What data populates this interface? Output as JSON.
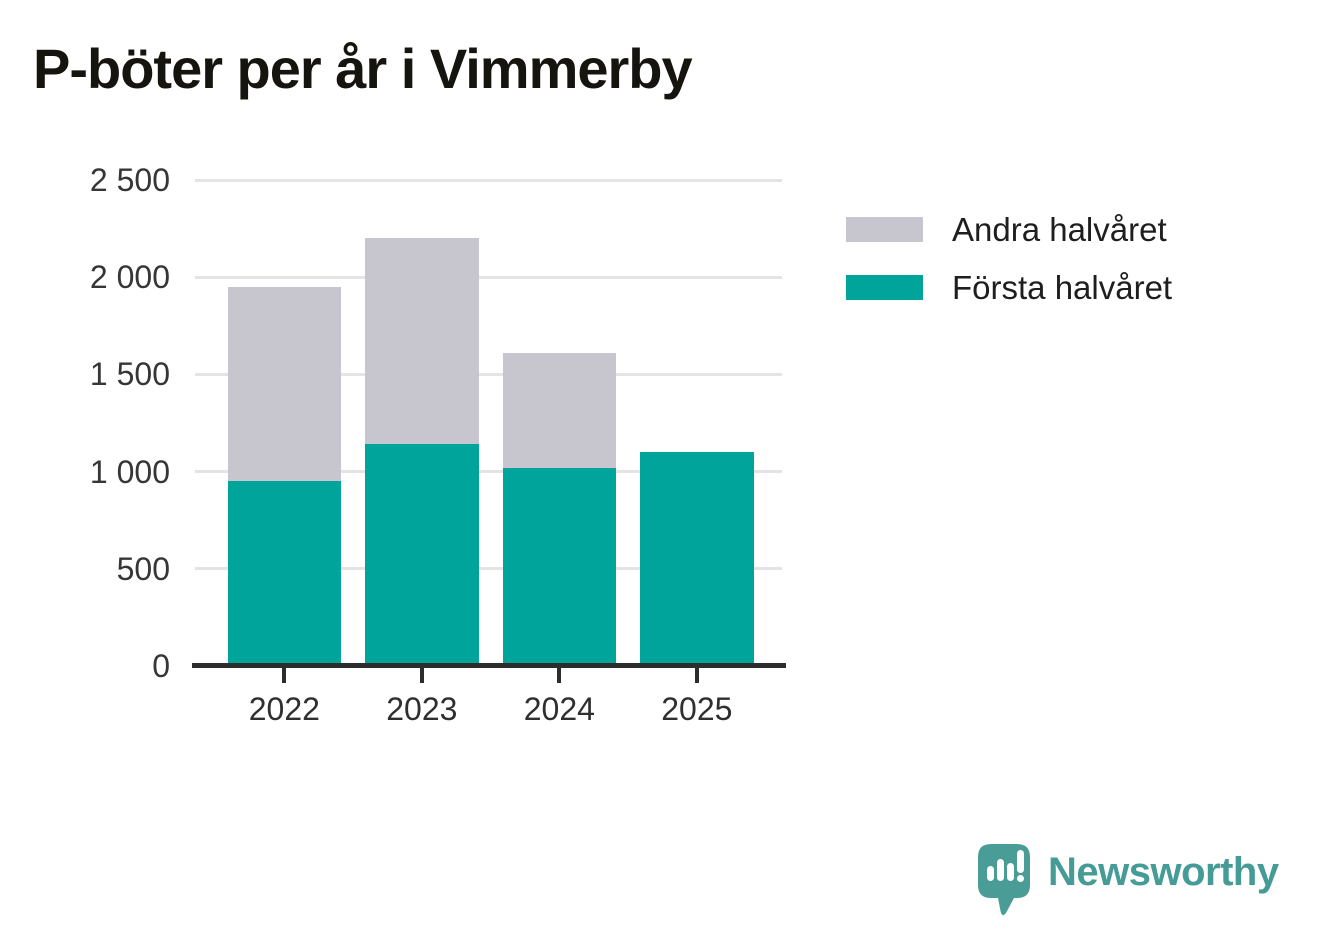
{
  "title": "P-böter per år i Vimmerby",
  "chart_data": {
    "type": "bar",
    "stacked": true,
    "title": "P-böter per år i Vimmerby",
    "categories": [
      "2022",
      "2023",
      "2024",
      "2025"
    ],
    "series": [
      {
        "name": "Första halvåret",
        "color": "#00A49B",
        "values": [
          950,
          1140,
          1020,
          1100
        ]
      },
      {
        "name": "Andra halvåret",
        "color": "#C7C6CF",
        "values": [
          1000,
          1060,
          590,
          0
        ]
      }
    ],
    "totals": [
      1950,
      2200,
      1610,
      1100
    ],
    "xlabel": "",
    "ylabel": "",
    "ylim": [
      0,
      2500
    ],
    "yticks": [
      0,
      500,
      1000,
      1500,
      2000,
      2500
    ],
    "ytick_labels": [
      "0",
      "500",
      "1 000",
      "1 500",
      "2 000",
      "2 500"
    ],
    "grid": true,
    "gridline_color": "#E4E4E7",
    "axis_color": "#2D2D2D",
    "legend_position": "right-top"
  },
  "legend": {
    "items": [
      {
        "label": "Andra halvåret",
        "color": "#C7C6CF"
      },
      {
        "label": "Första halvåret",
        "color": "#00A49B"
      }
    ]
  },
  "branding": {
    "name": "Newsworthy",
    "logo_icon": "newsworthy-speech-bubble-chart-icon",
    "color": "#459C96",
    "icon_color": "#4A9C96"
  }
}
